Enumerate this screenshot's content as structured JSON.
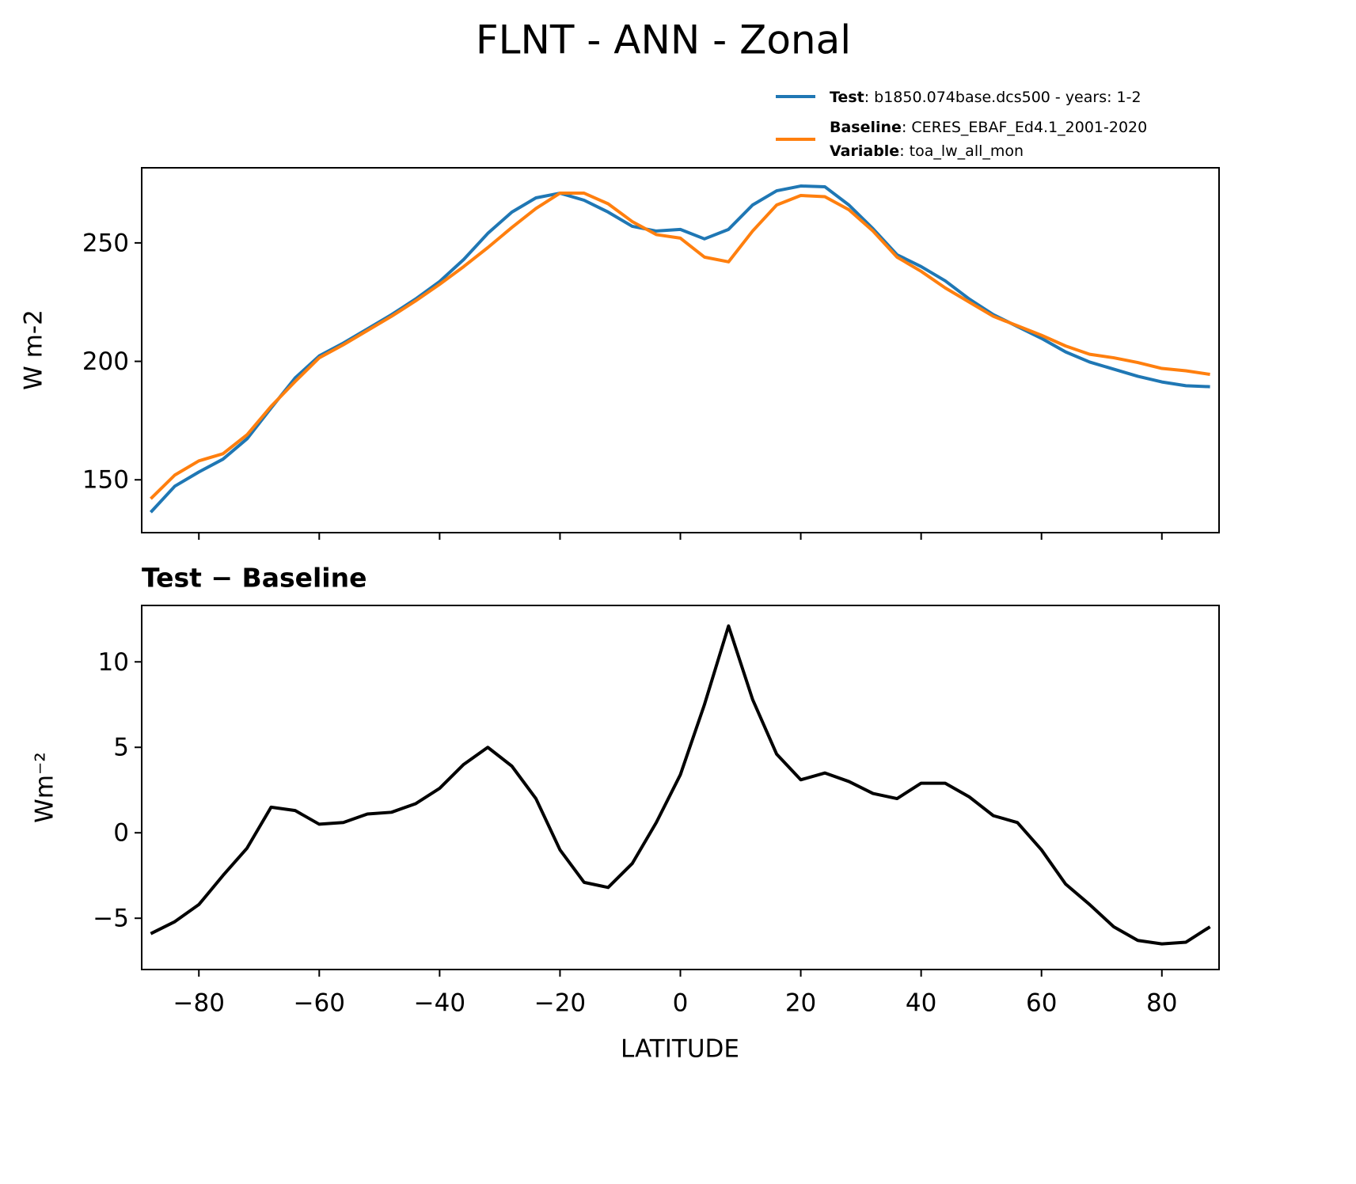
{
  "title": "FLNT - ANN - Zonal",
  "chart_data": [
    {
      "type": "line",
      "ylabel": "W m-2",
      "x": [
        -88,
        -84,
        -80,
        -76,
        -72,
        -68,
        -64,
        -60,
        -56,
        -52,
        -48,
        -44,
        -40,
        -36,
        -32,
        -28,
        -24,
        -20,
        -16,
        -12,
        -8,
        -4,
        0,
        4,
        8,
        12,
        16,
        20,
        24,
        28,
        32,
        36,
        40,
        44,
        48,
        52,
        56,
        60,
        64,
        68,
        72,
        76,
        80,
        84,
        88
      ],
      "series": [
        {
          "name": "Test",
          "description": ": b1850.074base.dcs500 - years: 1-2",
          "color": "#1f77b4",
          "values": [
            136.3,
            147.3,
            153.3,
            158.7,
            167.3,
            180.3,
            193,
            202.3,
            207.7,
            213.7,
            219.7,
            226.3,
            233.7,
            243,
            254,
            263,
            269,
            271,
            268,
            263,
            257,
            255,
            255.7,
            251.7,
            255.7,
            266,
            272,
            274,
            273.7,
            266,
            256,
            245,
            240,
            234,
            226.3,
            219.7,
            214.7,
            209.7,
            204,
            199.7,
            196.7,
            193.7,
            191.3,
            189.7,
            189.3
          ]
        },
        {
          "name": "Baseline",
          "description": ": CERES_EBAF_Ed4.1_2001-2020",
          "variable_name": "Variable",
          "variable": ": toa_lw_all_mon",
          "color": "#ff7f0e",
          "values": [
            142,
            152,
            158,
            161,
            169,
            181,
            191.5,
            201.5,
            207,
            213,
            219,
            225.5,
            232.5,
            240,
            248,
            256.5,
            264.5,
            271,
            271,
            266.5,
            259,
            253.5,
            252,
            244,
            242,
            255,
            266,
            270,
            269.5,
            264,
            255,
            244,
            238,
            231,
            225,
            219,
            215,
            211,
            206.5,
            203,
            201.5,
            199.5,
            197,
            196,
            194.5
          ]
        }
      ],
      "xlim": [
        -89.5,
        89.5
      ],
      "ylim": [
        127.7,
        281.7
      ],
      "xticks": [
        -80,
        -60,
        -40,
        -20,
        0,
        20,
        40,
        60,
        80
      ],
      "show_xticklabels": false,
      "yticks": [
        150,
        200,
        250
      ],
      "grid": false
    },
    {
      "type": "line",
      "subtitle": "Test − Baseline",
      "ylabel": "Wm⁻²",
      "xlabel": "LATITUDE",
      "x": [
        -88,
        -84,
        -80,
        -76,
        -72,
        -68,
        -64,
        -60,
        -56,
        -52,
        -48,
        -44,
        -40,
        -36,
        -32,
        -28,
        -24,
        -20,
        -16,
        -12,
        -8,
        -4,
        0,
        4,
        8,
        12,
        16,
        20,
        24,
        28,
        32,
        36,
        40,
        44,
        48,
        52,
        56,
        60,
        64,
        68,
        72,
        76,
        80,
        84,
        88
      ],
      "values": [
        -5.9,
        -5.2,
        -4.2,
        -2.5,
        -0.9,
        1.5,
        1.3,
        0.5,
        0.6,
        1.1,
        1.2,
        1.7,
        2.6,
        4.0,
        5.0,
        3.9,
        2.0,
        -1.0,
        -2.9,
        -3.2,
        -1.8,
        0.6,
        3.4,
        7.5,
        12.1,
        7.8,
        4.6,
        3.1,
        3.5,
        3.0,
        2.3,
        2.0,
        2.9,
        2.9,
        2.1,
        1.0,
        0.6,
        -1.0,
        -3.0,
        -4.2,
        -5.5,
        -6.3,
        -6.5,
        -6.4,
        -5.5
      ],
      "color": "#000000",
      "xlim": [
        -89.5,
        89.5
      ],
      "ylim": [
        -8.0,
        13.3
      ],
      "xticks": [
        {
          "value": -80,
          "label": "−80"
        },
        {
          "value": -60,
          "label": "−60"
        },
        {
          "value": -40,
          "label": "−40"
        },
        {
          "value": -20,
          "label": "−20"
        },
        0,
        20,
        40,
        60,
        80
      ],
      "show_xticklabels": true,
      "yticks": [
        {
          "value": -5,
          "label": "−5"
        },
        0,
        5,
        10
      ],
      "grid": false
    }
  ]
}
